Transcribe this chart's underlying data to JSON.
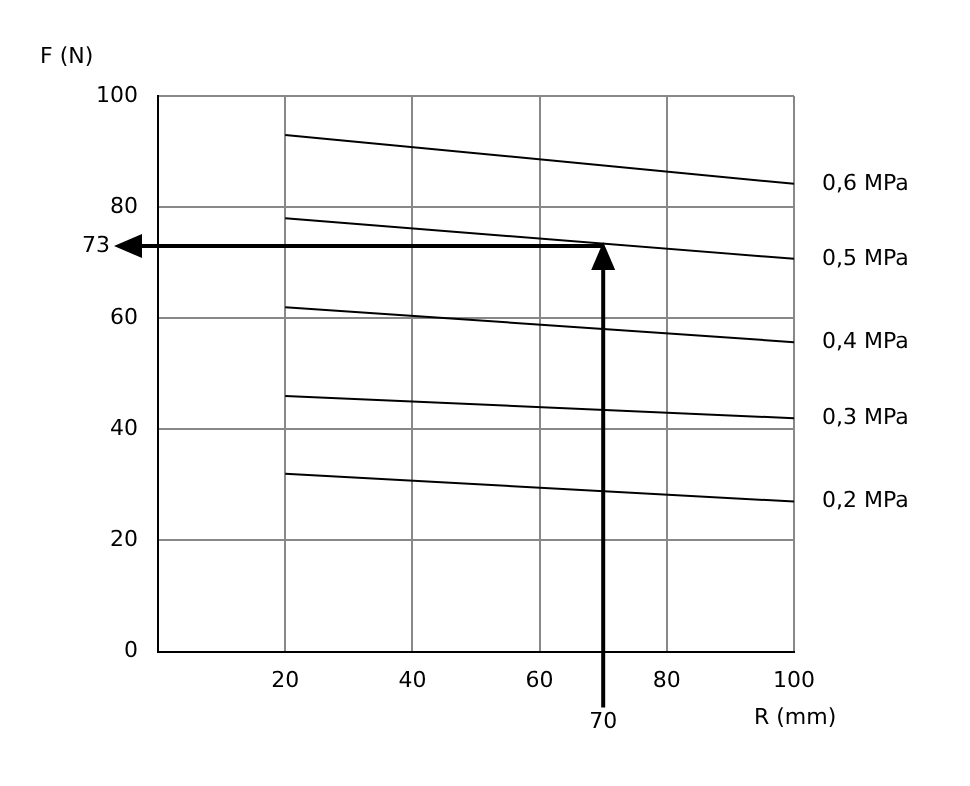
{
  "chart_data": {
    "type": "line",
    "xlabel": "R (mm)",
    "ylabel": "F (N)",
    "xlim": [
      0,
      100
    ],
    "xticks": [
      20,
      40,
      60,
      80,
      100
    ],
    "ylim": [
      0,
      100
    ],
    "yticks": [
      0,
      20,
      40,
      60,
      80,
      100
    ],
    "grid": true,
    "legend": false,
    "marker": "none",
    "line_style": "solid",
    "x": [
      20,
      100
    ],
    "series": [
      {
        "name": "0,6 MPa",
        "color": "#000000",
        "values": [
          93,
          84.2
        ]
      },
      {
        "name": "0,5 MPa",
        "color": "#000000",
        "values": [
          78,
          70.7
        ]
      },
      {
        "name": "0,4 MPa",
        "color": "#000000",
        "values": [
          62,
          55.7
        ]
      },
      {
        "name": "0,3 MPa",
        "color": "#000000",
        "values": [
          46,
          42
        ]
      },
      {
        "name": "0,2 MPa",
        "color": "#000000",
        "values": [
          32,
          27
        ]
      }
    ],
    "annotations": [
      {
        "text": "73",
        "x": 70,
        "y": 73
      },
      "70"
    ]
  }
}
